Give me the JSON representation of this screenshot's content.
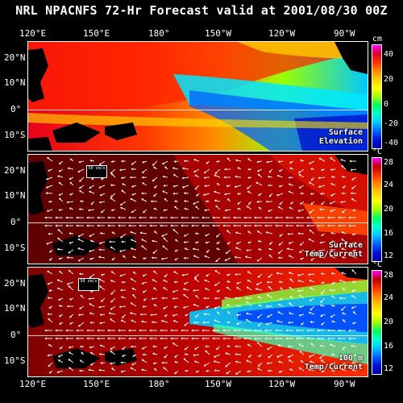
{
  "title": "NRL NPACNFS 72-Hr Forecast valid at 2001/08/30 00Z",
  "lon_labels": [
    "120°E",
    "150°E",
    "180°",
    "150°W",
    "120°W",
    "90°W"
  ],
  "lat_labels": [
    "20°N",
    "10°N",
    "0°",
    "10°S"
  ],
  "panels": [
    {
      "label_line1": "Surface",
      "label_line2": "Elevation",
      "unit": "cm",
      "ticks": [
        "40",
        "20",
        "0",
        "-20",
        "-40"
      ],
      "colorbar": [
        "#ff00ff",
        "#e0002a",
        "#ff3000",
        "#ff8800",
        "#ffcc00",
        "#ffff00",
        "#a0ff00",
        "#00ff60",
        "#00ffd0",
        "#00c8ff",
        "#0064ff",
        "#0010e0",
        "#0000a0"
      ]
    },
    {
      "label_line1": "Surface",
      "label_line2": "Temp/Current",
      "unit": "°C",
      "ticks": [
        "28",
        "24",
        "20",
        "16",
        "12"
      ],
      "colorbar": [
        "#ff00ff",
        "#c00000",
        "#ff3000",
        "#ff8800",
        "#ffcc00",
        "#ffff00",
        "#a0ff00",
        "#00ff60",
        "#00ffd0",
        "#00c8ff",
        "#0064ff",
        "#0010e0",
        "#0000a0"
      ]
    },
    {
      "label_line1": "100 m",
      "label_line2": "Temp/Current",
      "unit": "°C",
      "ticks": [
        "28",
        "24",
        "20",
        "16",
        "12"
      ],
      "colorbar": [
        "#ff00ff",
        "#c00000",
        "#ff3000",
        "#ff8800",
        "#ffcc00",
        "#ffff00",
        "#a0ff00",
        "#00ff60",
        "#00ffd0",
        "#00c8ff",
        "#0064ff",
        "#0010e0",
        "#0000a0"
      ]
    }
  ],
  "vector_legend": "50 cm/s"
}
